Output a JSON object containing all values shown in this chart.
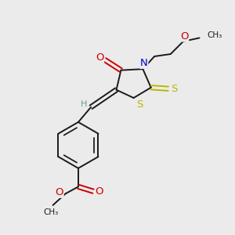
{
  "bg_color": "#ebebeb",
  "bond_color": "#1a1a1a",
  "S_color": "#b8b800",
  "N_color": "#0000cc",
  "O_color": "#cc0000",
  "H_color": "#6a9a9a",
  "figsize": [
    3.0,
    3.0
  ],
  "dpi": 100,
  "xlim": [
    0,
    10
  ],
  "ylim": [
    0,
    10
  ],
  "lw": 1.4,
  "fs": 9.0
}
